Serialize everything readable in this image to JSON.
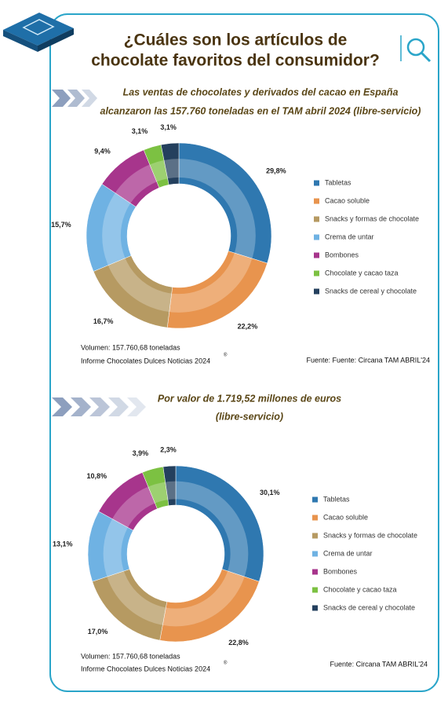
{
  "header": {
    "title_lines": [
      "¿Cuáles son los artículos de",
      "chocolate favoritos del consumidor?"
    ]
  },
  "chart_data": [
    {
      "type": "pie",
      "subtitle_lines": [
        "Las ventas de chocolates y derivados del cacao en España",
        "alcanzaron las 157.760 toneladas en el TAM abril 2024 (libre-servicio)"
      ],
      "categories": [
        "Tabletas",
        "Cacao soluble",
        "Snacks y formas de chocolate",
        "Crema de untar",
        "Bombones",
        "Chocolate y cacao taza",
        "Snacks de cereal y chocolate"
      ],
      "values": [
        29.8,
        22.2,
        16.7,
        15.7,
        9.4,
        3.1,
        3.1
      ],
      "value_labels": [
        "29,8%",
        "22,2%",
        "16,7%",
        "15,7%",
        "9,4%",
        "3,1%",
        "3,1%"
      ],
      "colors": [
        "#2f78b0",
        "#e8944e",
        "#b69a62",
        "#6fb2e3",
        "#a7358c",
        "#7cc142",
        "#24405e"
      ],
      "notes": [
        "Volumen: 157.760,68 toneladas",
        "Informe Chocolates Dulces Noticias 2024"
      ],
      "note_symbol": "®",
      "source": "Fuente: Fuente: Circana  TAM ABRIL'24"
    },
    {
      "type": "pie",
      "subtitle_lines": [
        "Por valor de 1.719,52 millones de euros",
        "(libre-servicio)"
      ],
      "categories": [
        "Tabletas",
        "Cacao soluble",
        "Snacks y formas de chocolate",
        "Crema de untar",
        "Bombones",
        "Chocolate y cacao taza",
        "Snacks de cereal y chocolate"
      ],
      "values": [
        30.1,
        22.8,
        17.0,
        13.1,
        10.8,
        3.9,
        2.3
      ],
      "value_labels": [
        "30,1%",
        "22,8%",
        "17,0%",
        "13,1%",
        "10,8%",
        "3,9%",
        "2,3%"
      ],
      "colors": [
        "#2f78b0",
        "#e8944e",
        "#b69a62",
        "#6fb2e3",
        "#a7358c",
        "#7cc142",
        "#24405e"
      ],
      "notes": [
        "Volumen: 157.760,68 toneladas",
        "Informe Chocolates Dulces Noticias 2024"
      ],
      "note_symbol": "®",
      "source": "Fuente: Circana TAM ABRIL'24"
    }
  ]
}
